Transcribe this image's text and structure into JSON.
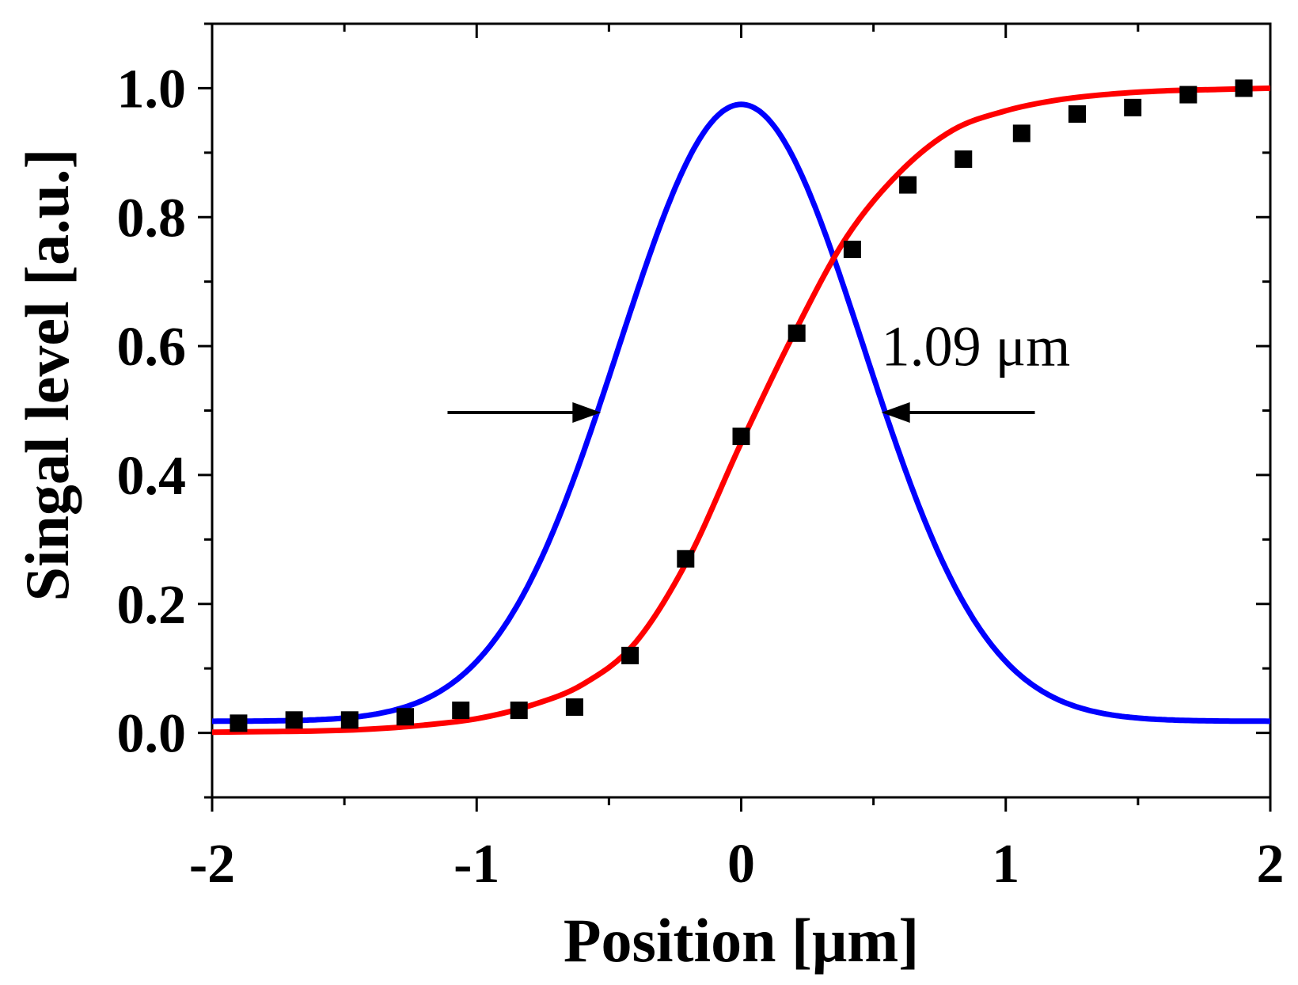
{
  "chart_data": {
    "type": "line",
    "xlabel": "Position [μm]",
    "ylabel": "Singal level [a.u.]",
    "xlim": [
      -2,
      2
    ],
    "ylim": [
      -0.1,
      1.1
    ],
    "xticks": [
      -2,
      -1,
      0,
      1,
      2
    ],
    "xtick_labels": [
      "-2",
      "-1",
      "0",
      "1",
      "2"
    ],
    "yticks": [
      0.0,
      0.2,
      0.4,
      0.6,
      0.8,
      1.0
    ],
    "ytick_labels": [
      "0.0",
      "0.2",
      "0.4",
      "0.6",
      "0.8",
      "1.0"
    ],
    "grid": false,
    "series": [
      {
        "kind": "scatter",
        "color": "#000000",
        "marker": "square",
        "x": [
          -1.9,
          -1.69,
          -1.48,
          -1.27,
          -1.06,
          -0.84,
          -0.63,
          -0.42,
          -0.21,
          0.0,
          0.21,
          0.42,
          0.63,
          0.84,
          1.06,
          1.27,
          1.48,
          1.69,
          1.9
        ],
        "y": [
          0.015,
          0.02,
          0.02,
          0.025,
          0.035,
          0.035,
          0.04,
          0.12,
          0.27,
          0.46,
          0.62,
          0.75,
          0.85,
          0.89,
          0.93,
          0.96,
          0.97,
          0.99,
          1.0
        ]
      },
      {
        "kind": "line",
        "color": "#ff0000",
        "x": [
          -2.0,
          -1.8,
          -1.6,
          -1.4,
          -1.2,
          -1.0,
          -0.8,
          -0.6,
          -0.4,
          -0.2,
          0.0,
          0.2,
          0.4,
          0.6,
          0.8,
          1.0,
          1.2,
          1.4,
          1.6,
          1.8,
          2.0
        ],
        "y": [
          0.001,
          0.002,
          0.003,
          0.006,
          0.012,
          0.022,
          0.042,
          0.075,
          0.14,
          0.27,
          0.45,
          0.62,
          0.77,
          0.87,
          0.935,
          0.965,
          0.982,
          0.991,
          0.996,
          0.998,
          1.0
        ]
      },
      {
        "kind": "line",
        "color": "#0000ff",
        "peak_x": 0.0,
        "peak_y": 0.975,
        "baseline": 0.018,
        "fwhm": 1.09
      }
    ],
    "annotations": [
      {
        "text": "1.09 μm",
        "x": 0.53,
        "y": 0.57
      }
    ],
    "arrows": [
      {
        "from": [
          -1.11,
          0.497
        ],
        "to": [
          -0.53,
          0.497
        ]
      },
      {
        "from": [
          1.11,
          0.497
        ],
        "to": [
          0.53,
          0.497
        ]
      }
    ]
  }
}
